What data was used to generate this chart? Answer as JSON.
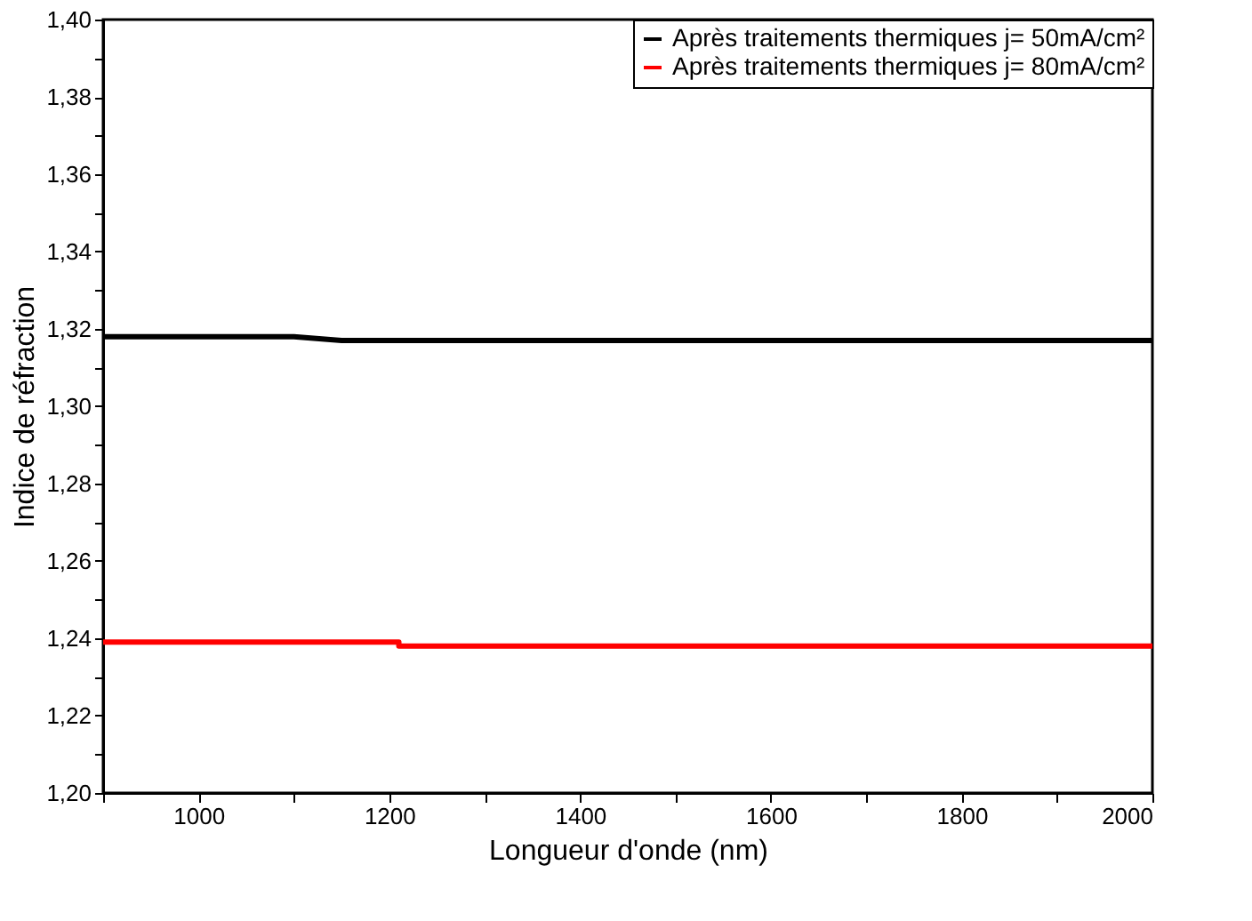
{
  "chart_data": {
    "type": "line",
    "xlabel": "Longueur d'onde (nm)",
    "ylabel": "Indice de réfraction",
    "series": [
      {
        "name": "Après traitements thermiques j= 50mA/cm²",
        "color": "#000000",
        "x": [
          900,
          1100,
          1150,
          2000
        ],
        "values": [
          1.318,
          1.318,
          1.317,
          1.317
        ]
      },
      {
        "name": "Après traitements thermiques j= 80mA/cm²",
        "color": "#ff0000",
        "x": [
          900,
          1210,
          1210,
          2000
        ],
        "values": [
          1.239,
          1.239,
          1.238,
          1.238
        ]
      }
    ],
    "xlim": [
      900,
      2000
    ],
    "xticks": [
      {
        "value": 900,
        "label": null
      },
      1000,
      {
        "value": 1100,
        "label": null
      },
      1200,
      {
        "value": 1300,
        "label": null
      },
      1400,
      {
        "value": 1500,
        "label": null
      },
      1600,
      {
        "value": 1700,
        "label": null
      },
      1800,
      {
        "value": 1900,
        "label": null
      },
      2000
    ],
    "ylim": [
      1.2,
      1.4
    ],
    "yticks": [
      {
        "value": 1.2,
        "label": "1,20"
      },
      {
        "value": 1.21,
        "label": null
      },
      {
        "value": 1.22,
        "label": "1,22"
      },
      {
        "value": 1.23,
        "label": null
      },
      {
        "value": 1.24,
        "label": "1,24"
      },
      {
        "value": 1.25,
        "label": null
      },
      {
        "value": 1.26,
        "label": "1,26"
      },
      {
        "value": 1.27,
        "label": null
      },
      {
        "value": 1.28,
        "label": "1,28"
      },
      {
        "value": 1.29,
        "label": null
      },
      {
        "value": 1.3,
        "label": "1,30"
      },
      {
        "value": 1.31,
        "label": null
      },
      {
        "value": 1.32,
        "label": "1,32"
      },
      {
        "value": 1.33,
        "label": null
      },
      {
        "value": 1.34,
        "label": "1,34"
      },
      {
        "value": 1.35,
        "label": null
      },
      {
        "value": 1.36,
        "label": "1,36"
      },
      {
        "value": 1.37,
        "label": null
      },
      {
        "value": 1.38,
        "label": "1,38"
      },
      {
        "value": 1.39,
        "label": null
      },
      {
        "value": 1.4,
        "label": "1,40"
      }
    ],
    "grid": false,
    "legend": "top right",
    "marker": "none",
    "line_style": "solid"
  }
}
